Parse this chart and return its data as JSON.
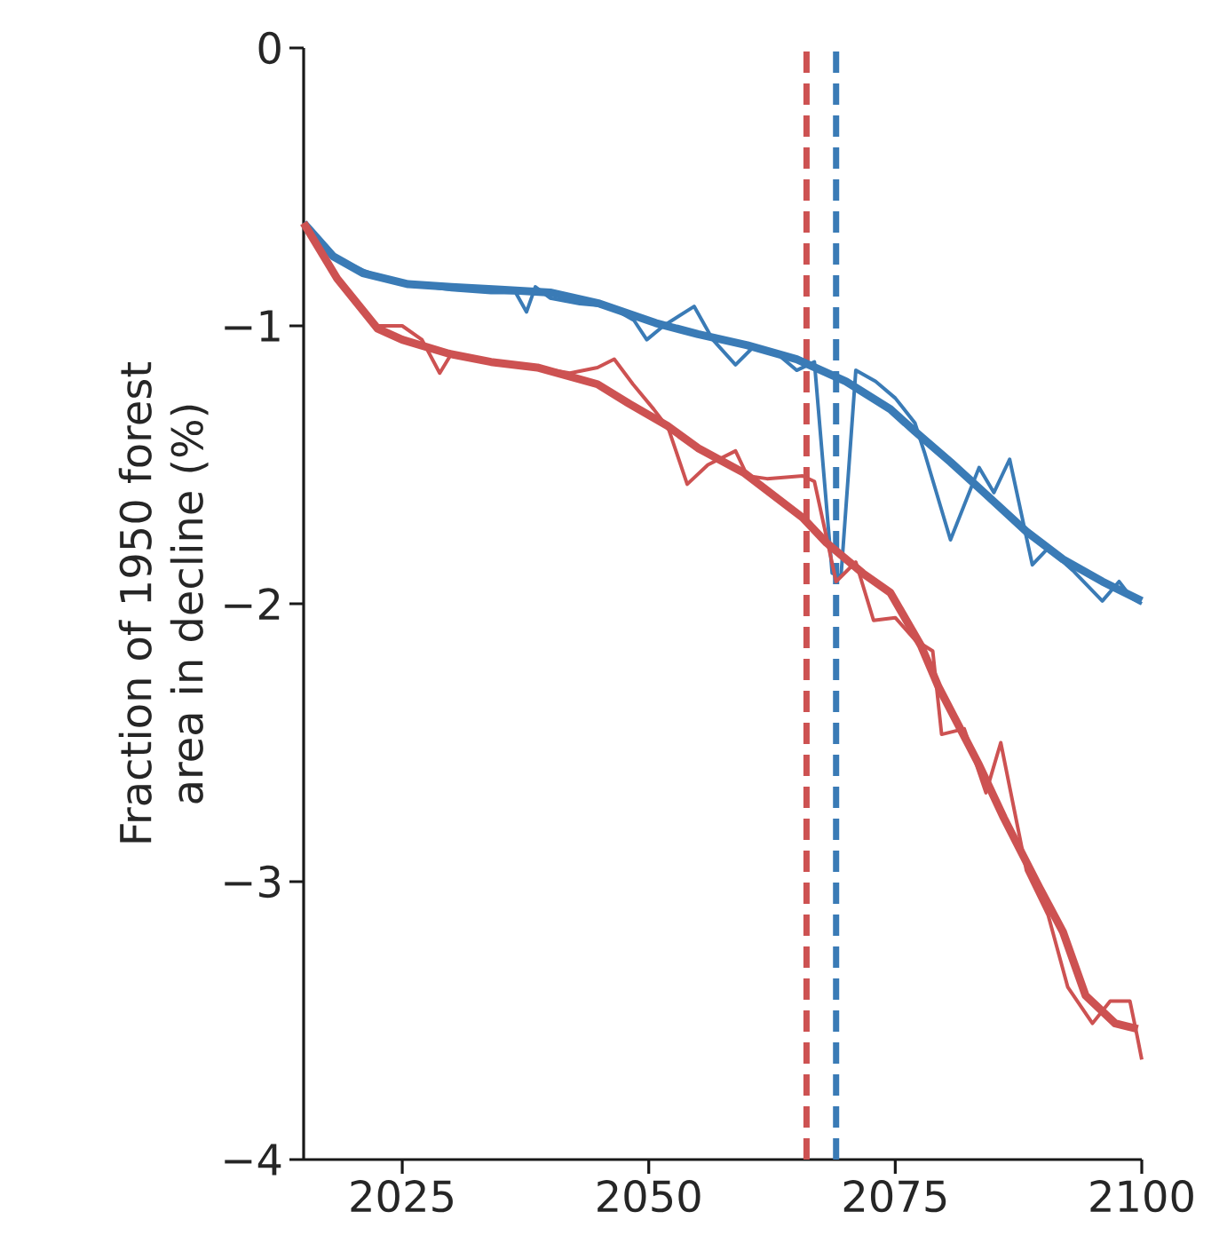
{
  "chart_data": {
    "type": "line",
    "ylabel": "Fraction of 1950 forest area in decline (%)",
    "xlim": [
      2015,
      2100
    ],
    "ylim": [
      -4,
      0
    ],
    "xticks": [
      2025,
      2050,
      2075,
      2100
    ],
    "yticks": [
      {
        "value": -4,
        "label": "−4"
      },
      {
        "value": -3,
        "label": "−3"
      },
      {
        "value": -2,
        "label": "−2"
      },
      {
        "value": -1,
        "label": "−1"
      },
      {
        "value": 0,
        "label": "0"
      }
    ],
    "grid": false,
    "line_style": "solid",
    "series": [
      {
        "color": "#3a7bb6",
        "x": [
          2015,
          2018,
          2021,
          2024,
          2025.6,
          2030,
          2034,
          2036.5,
          2037.6,
          2038.5,
          2040,
          2043,
          2046,
          2048.5,
          2049.8,
          2051.5,
          2054.6,
          2056.5,
          2058.8,
          2060.5,
          2063,
          2065,
          2066.8,
          2068.6,
          2069.5,
          2071,
          2073,
          2075,
          2077,
          2078,
          2080.6,
          2083.5,
          2085,
          2086.6,
          2088.9,
          2090.5,
          2093,
          2096,
          2097.7,
          2099,
          2100
        ],
        "values": [
          -0.63,
          -0.75,
          -0.8,
          -0.84,
          -0.85,
          -0.87,
          -0.88,
          -0.88,
          -0.95,
          -0.86,
          -0.9,
          -0.92,
          -0.93,
          -0.98,
          -1.05,
          -1.0,
          -0.93,
          -1.05,
          -1.14,
          -1.08,
          -1.1,
          -1.16,
          -1.13,
          -1.89,
          -1.9,
          -1.16,
          -1.2,
          -1.26,
          -1.35,
          -1.46,
          -1.77,
          -1.51,
          -1.6,
          -1.48,
          -1.86,
          -1.8,
          -1.88,
          -1.99,
          -1.92,
          -1.98,
          -2.0
        ]
      },
      {
        "color": "#3a7bb6",
        "x": [
          2015,
          2018,
          2021,
          2025.6,
          2030,
          2035,
          2040,
          2045,
          2050.7,
          2055,
          2060,
          2065,
          2070,
          2074.5,
          2077,
          2080.6,
          2084,
          2088.3,
          2092,
          2096,
          2100
        ],
        "values": [
          -0.63,
          -0.75,
          -0.81,
          -0.85,
          -0.86,
          -0.87,
          -0.88,
          -0.92,
          -0.99,
          -1.03,
          -1.07,
          -1.12,
          -1.2,
          -1.3,
          -1.38,
          -1.49,
          -1.6,
          -1.74,
          -1.84,
          -1.92,
          -1.99
        ]
      },
      {
        "color": "#cd5252",
        "x": [
          2015,
          2018.4,
          2022.5,
          2025,
          2027,
          2028.8,
          2030,
          2034,
          2038.7,
          2042,
          2044.8,
          2046.5,
          2048.4,
          2050.5,
          2052,
          2053.9,
          2056,
          2058.8,
          2060,
          2062,
          2065.6,
          2066.8,
          2069,
          2071,
          2072.8,
          2075,
          2077,
          2078.8,
          2079.7,
          2082,
          2084.2,
          2085.7,
          2088.3,
          2090.5,
          2092.5,
          2095,
          2096.8,
          2098.8,
          2099.5,
          2100
        ],
        "values": [
          -0.63,
          -0.84,
          -1.0,
          -1.0,
          -1.05,
          -1.17,
          -1.1,
          -1.13,
          -1.15,
          -1.17,
          -1.15,
          -1.12,
          -1.21,
          -1.3,
          -1.37,
          -1.57,
          -1.5,
          -1.45,
          -1.54,
          -1.55,
          -1.54,
          -1.56,
          -1.92,
          -1.85,
          -2.06,
          -2.05,
          -2.13,
          -2.17,
          -2.47,
          -2.45,
          -2.68,
          -2.5,
          -2.96,
          -3.12,
          -3.38,
          -3.51,
          -3.43,
          -3.43,
          -3.55,
          -3.64
        ]
      },
      {
        "color": "#cd5252",
        "x": [
          2015,
          2018.4,
          2022.5,
          2025,
          2029.7,
          2034,
          2038.7,
          2044.8,
          2048,
          2051.9,
          2055,
          2059.7,
          2065.6,
          2068,
          2071.7,
          2074.5,
          2077.6,
          2079.4,
          2083.5,
          2086,
          2089.6,
          2092,
          2094.3,
          2097.3,
          2099.6
        ],
        "values": [
          -0.63,
          -0.83,
          -1.01,
          -1.05,
          -1.1,
          -1.13,
          -1.15,
          -1.21,
          -1.28,
          -1.36,
          -1.44,
          -1.53,
          -1.69,
          -1.78,
          -1.89,
          -1.96,
          -2.15,
          -2.3,
          -2.58,
          -2.77,
          -3.02,
          -3.18,
          -3.41,
          -3.51,
          -3.53
        ]
      }
    ],
    "ref_lines": [
      {
        "axis": "x",
        "value": 2066,
        "color": "#cd5252",
        "line_style": "dashed"
      },
      {
        "axis": "x",
        "value": 2069,
        "color": "#3a7bb6",
        "line_style": "dashed"
      }
    ]
  }
}
